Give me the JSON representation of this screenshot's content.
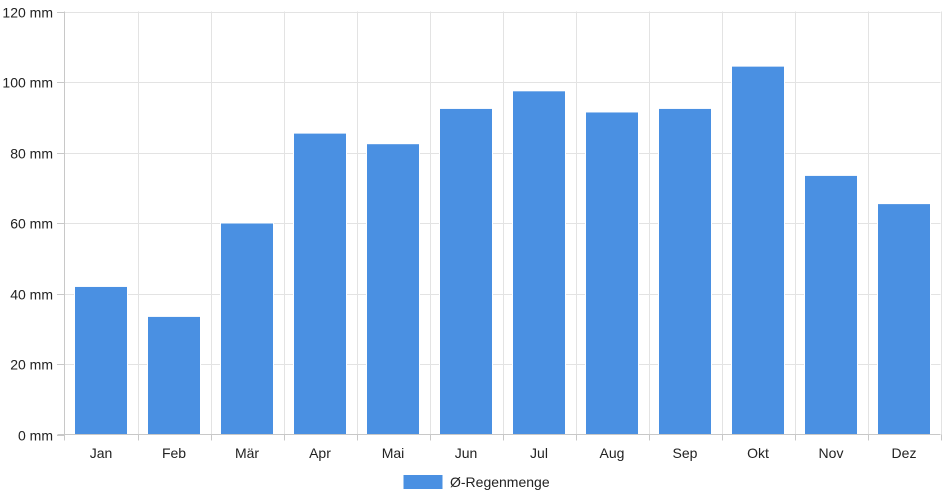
{
  "chart_data": {
    "type": "bar",
    "categories": [
      "Jan",
      "Feb",
      "Mär",
      "Apr",
      "Mai",
      "Jun",
      "Jul",
      "Aug",
      "Sep",
      "Okt",
      "Nov",
      "Dez"
    ],
    "series": [
      {
        "name": "Ø-Regenmenge",
        "values": [
          42,
          33.5,
          60,
          85.5,
          82.5,
          92.5,
          97.5,
          91.5,
          92.5,
          104.5,
          73.5,
          65.5
        ],
        "color": "#4a90e2"
      }
    ],
    "yticks": [
      "0 mm",
      "20 mm",
      "40 mm",
      "60 mm",
      "80 mm",
      "100 mm",
      "120 mm"
    ],
    "ylim": [
      0,
      120
    ],
    "grid": true,
    "legend_position": "bottom-center"
  }
}
